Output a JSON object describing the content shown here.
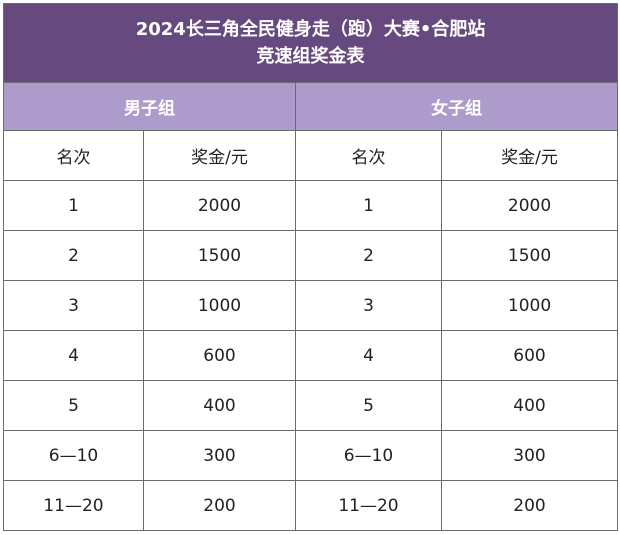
{
  "title": {
    "line1": "2024长三角全民健身走（跑）大赛•合肥站",
    "line2": "竞速组奖金表"
  },
  "groups": {
    "men": "男子组",
    "women": "女子组"
  },
  "columns": {
    "rank": "名次",
    "prize": "奖金/元"
  },
  "rows": [
    {
      "rank": "1",
      "men_prize": "2000",
      "women_prize": "2000"
    },
    {
      "rank": "2",
      "men_prize": "1500",
      "women_prize": "1500"
    },
    {
      "rank": "3",
      "men_prize": "1000",
      "women_prize": "1000"
    },
    {
      "rank": "4",
      "men_prize": "600",
      "women_prize": "600"
    },
    {
      "rank": "5",
      "men_prize": "400",
      "women_prize": "400"
    },
    {
      "rank": "6—10",
      "men_prize": "300",
      "women_prize": "300"
    },
    {
      "rank": "11—20",
      "men_prize": "200",
      "women_prize": "200"
    }
  ],
  "colors": {
    "title_bg": "#66497e",
    "group_bg": "#ad9bcb",
    "text_light": "#ffffff",
    "text_dark": "#222222"
  }
}
